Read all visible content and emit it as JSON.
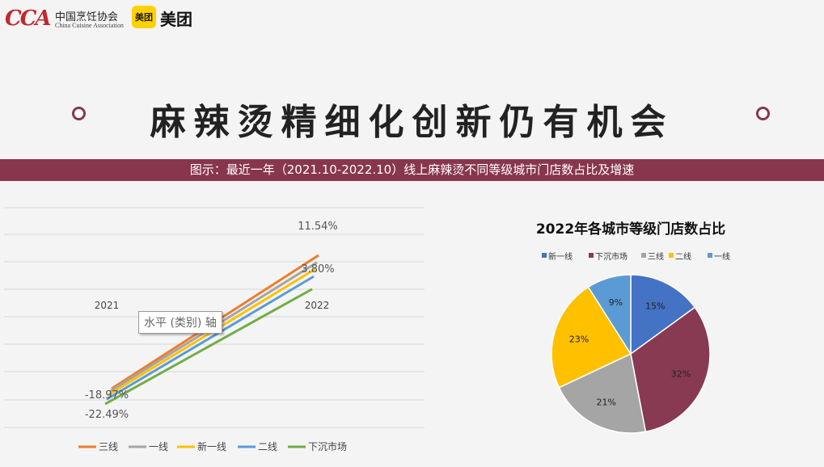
{
  "header": {
    "logo_text": "CCA",
    "association_cn": "中国烹饪协会",
    "association_en": "China Cuisine Association",
    "meituan_badge": "美团",
    "meituan_text": "美团"
  },
  "main_title": "麻辣烫精细化创新仍有机会",
  "banner": "图示：最近一年（2021.10-2022.10）线上麻辣烫不同等级城市门店数占比及增速",
  "tooltip": "水平 (类别) 轴",
  "chart_data": [
    {
      "type": "line",
      "title": "",
      "categories": [
        "2021",
        "2022"
      ],
      "series": [
        {
          "name": "三线",
          "color": "#ed7d31",
          "values": [
            -18.97,
            11.54
          ]
        },
        {
          "name": "一线",
          "color": "#a5a5a5",
          "values": [
            -19.6,
            9.9
          ]
        },
        {
          "name": "新一线",
          "color": "#ffc000",
          "values": [
            -20.4,
            8.4
          ]
        },
        {
          "name": "二线",
          "color": "#5b9bd5",
          "values": [
            -21.4,
            6.7
          ]
        },
        {
          "name": "下沉市场",
          "color": "#70ad47",
          "values": [
            -22.49,
            3.8
          ]
        }
      ],
      "data_labels": [
        "11.54%",
        "3.80%",
        "-18.97%",
        "-22.49%"
      ],
      "grid": true,
      "legend_position": "bottom"
    },
    {
      "type": "pie",
      "title": "2022年各城市等级门店数占比",
      "legend_position": "top",
      "slices": [
        {
          "name": "新一线",
          "value": 15,
          "label": "15%",
          "color": "#4472c4"
        },
        {
          "name": "下沉市场",
          "value": 32,
          "label": "32%",
          "color": "#873a52"
        },
        {
          "name": "三线",
          "value": 21,
          "label": "21%",
          "color": "#a5a5a5"
        },
        {
          "name": "二线",
          "value": 23,
          "label": "23%",
          "color": "#ffc000"
        },
        {
          "name": "一线",
          "value": 9,
          "label": "9%",
          "color": "#5b9bd5"
        }
      ]
    }
  ]
}
